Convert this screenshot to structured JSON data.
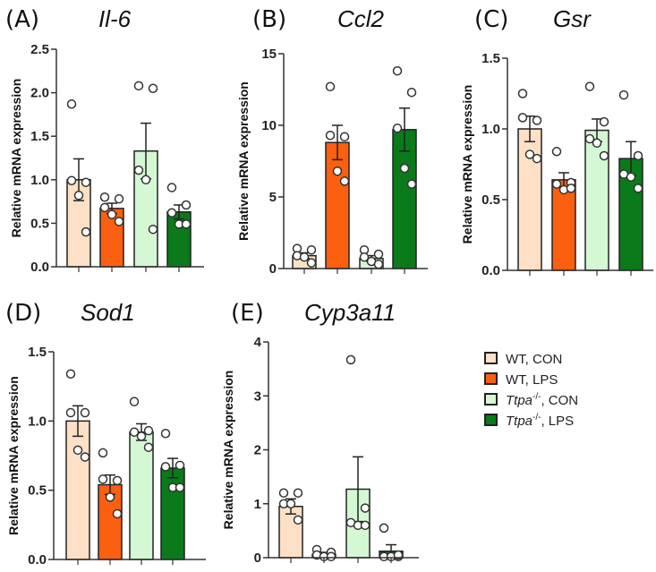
{
  "chart_data": [
    {
      "type": "bar",
      "panel": "(A)",
      "title": "Il-6",
      "ylabel": "Relative mRNA expression",
      "ylim": [
        0,
        2.5
      ],
      "ticks": [
        "0.0",
        "0.5",
        "1.0",
        "1.5",
        "2.0",
        "2.5"
      ],
      "categories": [
        "WT, CON",
        "WT, LPS",
        "Ttpa-/-, CON",
        "Ttpa-/-, LPS"
      ],
      "values": [
        1.0,
        0.67,
        1.33,
        0.63
      ],
      "sem": [
        0.24,
        0.06,
        0.32,
        0.08
      ],
      "points": [
        [
          1.87,
          0.97,
          0.99,
          0.82,
          0.4
        ],
        [
          0.8,
          0.78,
          0.68,
          0.6,
          0.52
        ],
        [
          2.08,
          2.05,
          1.11,
          1.0,
          0.43
        ],
        [
          0.91,
          0.71,
          0.62,
          0.49,
          0.49
        ]
      ]
    },
    {
      "type": "bar",
      "panel": "(B)",
      "title": "Ccl2",
      "ylabel": "Relative mRNA expression",
      "ylim": [
        0,
        15
      ],
      "ticks": [
        "0",
        "5",
        "10",
        "15"
      ],
      "categories": [
        "WT, CON",
        "WT, LPS",
        "Ttpa-/-, CON",
        "Ttpa-/-, LPS"
      ],
      "values": [
        0.9,
        8.8,
        0.7,
        9.7
      ],
      "sem": [
        0.2,
        1.2,
        0.2,
        1.5
      ],
      "points": [
        [
          1.4,
          1.3,
          0.9,
          0.8,
          0.4
        ],
        [
          12.7,
          9.2,
          9.3,
          6.8,
          6.1
        ],
        [
          1.3,
          1.0,
          0.8,
          0.5,
          0.3
        ],
        [
          13.8,
          12.3,
          9.8,
          7.0,
          5.9
        ]
      ]
    },
    {
      "type": "bar",
      "panel": "(C)",
      "title": "Gsr",
      "ylabel": "Relative mRNA expression",
      "ylim": [
        0,
        1.5
      ],
      "ticks": [
        "0.0",
        "0.5",
        "1.0",
        "1.5"
      ],
      "categories": [
        "WT, CON",
        "WT, LPS",
        "Ttpa-/-, CON",
        "Ttpa-/-, LPS"
      ],
      "values": [
        1.0,
        0.64,
        0.99,
        0.79
      ],
      "sem": [
        0.09,
        0.05,
        0.08,
        0.12
      ],
      "points": [
        [
          1.25,
          1.06,
          1.08,
          0.82,
          0.79
        ],
        [
          0.84,
          0.62,
          0.61,
          0.57,
          0.58
        ],
        [
          1.3,
          1.05,
          0.93,
          0.9,
          0.81
        ],
        [
          1.24,
          0.81,
          0.68,
          0.66,
          0.58
        ]
      ]
    },
    {
      "type": "bar",
      "panel": "(D)",
      "title": "Sod1",
      "ylabel": "Relative mRNA expression",
      "ylim": [
        0,
        1.5
      ],
      "ticks": [
        "0.0",
        "0.5",
        "1.0",
        "1.5"
      ],
      "categories": [
        "WT, CON",
        "WT, LPS",
        "Ttpa-/-, CON",
        "Ttpa-/-, LPS"
      ],
      "values": [
        1.0,
        0.54,
        0.92,
        0.66
      ],
      "sem": [
        0.11,
        0.07,
        0.06,
        0.07
      ],
      "points": [
        [
          1.34,
          1.06,
          1.06,
          0.79,
          0.74
        ],
        [
          0.77,
          0.57,
          0.58,
          0.45,
          0.33
        ],
        [
          1.14,
          0.93,
          0.92,
          0.89,
          0.81
        ],
        [
          0.91,
          0.68,
          0.67,
          0.52,
          0.52
        ]
      ]
    },
    {
      "type": "bar",
      "panel": "(E)",
      "title": "Cyp3a11",
      "ylabel": "Relative mRNA expression",
      "ylim": [
        0,
        4
      ],
      "ticks": [
        "0",
        "1",
        "2",
        "3",
        "4"
      ],
      "categories": [
        "WT, CON",
        "WT, LPS",
        "Ttpa-/-, CON",
        "Ttpa-/-, LPS"
      ],
      "values": [
        0.95,
        0.06,
        1.27,
        0.12
      ],
      "sem": [
        0.14,
        0.04,
        0.6,
        0.12
      ],
      "points": [
        [
          1.2,
          1.2,
          1.0,
          1.0,
          0.7
        ],
        [
          0.15,
          0.1,
          0.05,
          0.02,
          0.02
        ],
        [
          3.67,
          0.92,
          0.65,
          0.6,
          0.6
        ],
        [
          0.55,
          0.02,
          0.02,
          0.02,
          0.05
        ]
      ]
    }
  ],
  "legend": {
    "position": "bottom-right",
    "items": [
      {
        "prefix": "WT",
        "suffix": ", CON",
        "sup": "",
        "color": "#fde0c5"
      },
      {
        "prefix": "WT",
        "suffix": ", LPS",
        "sup": "",
        "color": "#fb5f10"
      },
      {
        "prefix": "Ttpa",
        "sup": "-/-",
        "suffix": ", CON",
        "color": "#d4f7d4"
      },
      {
        "prefix": "Ttpa",
        "sup": "-/-",
        "suffix": ", LPS",
        "color": "#0a7a1a"
      }
    ]
  }
}
